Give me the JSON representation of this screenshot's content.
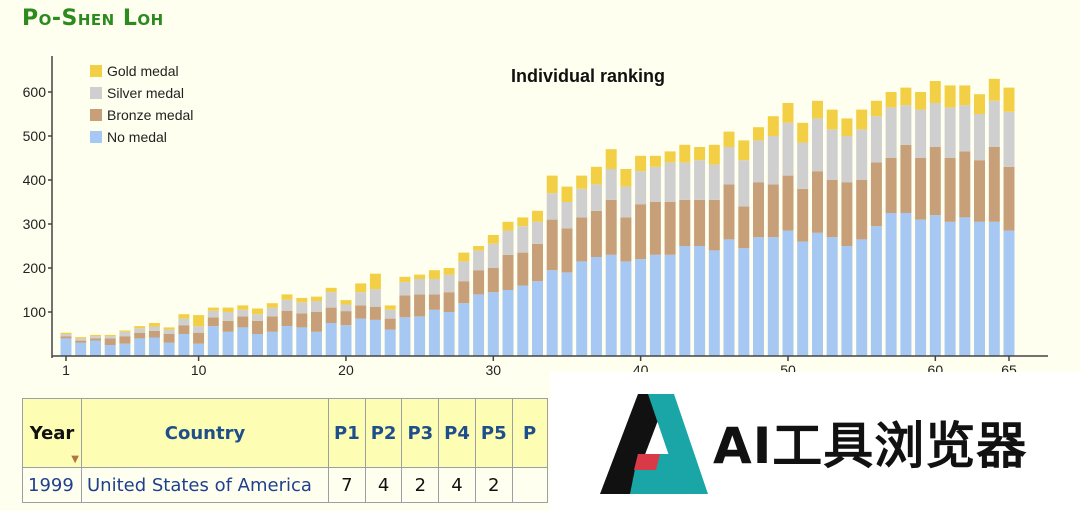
{
  "header": {
    "title": "Po-Shen Loh"
  },
  "chart_data": {
    "type": "bar",
    "title": "Individual ranking",
    "stacked": true,
    "ylim": [
      0,
      650
    ],
    "xlim": [
      1,
      65
    ],
    "y_ticks": [
      100,
      200,
      300,
      400,
      500,
      600
    ],
    "x_ticks": [
      1,
      10,
      20,
      30,
      40,
      50,
      60,
      65
    ],
    "legend_position": "top-left",
    "categories": [
      1,
      2,
      3,
      4,
      5,
      6,
      7,
      8,
      9,
      10,
      11,
      12,
      13,
      14,
      15,
      16,
      17,
      18,
      19,
      20,
      21,
      22,
      23,
      24,
      25,
      26,
      27,
      28,
      29,
      30,
      31,
      32,
      33,
      34,
      35,
      36,
      37,
      38,
      39,
      40,
      41,
      42,
      43,
      44,
      45,
      46,
      47,
      48,
      49,
      50,
      51,
      52,
      53,
      54,
      55,
      56,
      57,
      58,
      59,
      60,
      61,
      62,
      63,
      64,
      65
    ],
    "series": [
      {
        "name": "No medal",
        "color": "#a7c8f3",
        "values": [
          40,
          30,
          35,
          25,
          28,
          40,
          42,
          30,
          50,
          28,
          68,
          55,
          65,
          50,
          55,
          68,
          65,
          55,
          75,
          70,
          85,
          82,
          60,
          88,
          90,
          105,
          100,
          120,
          140,
          145,
          150,
          160,
          170,
          195,
          190,
          215,
          225,
          230,
          215,
          220,
          230,
          230,
          250,
          250,
          240,
          265,
          245,
          270,
          270,
          285,
          260,
          280,
          270,
          250,
          265,
          295,
          325,
          325,
          310,
          320,
          305,
          315,
          305,
          305,
          285
        ]
      },
      {
        "name": "Bronze medal",
        "color": "#c7a07a",
        "values": [
          5,
          5,
          5,
          15,
          17,
          13,
          15,
          20,
          20,
          25,
          20,
          25,
          25,
          30,
          35,
          35,
          32,
          45,
          35,
          32,
          30,
          30,
          25,
          50,
          50,
          35,
          45,
          50,
          55,
          55,
          80,
          75,
          85,
          115,
          100,
          100,
          105,
          125,
          100,
          125,
          120,
          120,
          105,
          105,
          115,
          125,
          95,
          125,
          120,
          125,
          120,
          140,
          130,
          145,
          135,
          145,
          125,
          155,
          140,
          155,
          145,
          150,
          140,
          170,
          145
        ]
      },
      {
        "name": "Silver medal",
        "color": "#cfcfcf",
        "values": [
          5,
          5,
          5,
          5,
          10,
          10,
          10,
          10,
          15,
          15,
          15,
          20,
          15,
          15,
          20,
          25,
          25,
          25,
          35,
          15,
          30,
          40,
          20,
          30,
          35,
          35,
          40,
          45,
          45,
          55,
          55,
          60,
          50,
          60,
          60,
          65,
          60,
          70,
          70,
          75,
          80,
          90,
          85,
          90,
          80,
          85,
          105,
          95,
          110,
          120,
          105,
          120,
          115,
          105,
          115,
          105,
          115,
          90,
          110,
          100,
          115,
          105,
          105,
          105,
          125
        ]
      },
      {
        "name": "Gold medal",
        "color": "#f3cf45",
        "values": [
          3,
          3,
          3,
          3,
          3,
          5,
          8,
          5,
          10,
          25,
          7,
          10,
          10,
          13,
          10,
          12,
          10,
          10,
          10,
          10,
          20,
          35,
          10,
          12,
          10,
          20,
          15,
          20,
          10,
          20,
          20,
          20,
          25,
          40,
          35,
          30,
          40,
          45,
          40,
          35,
          25,
          25,
          40,
          30,
          45,
          35,
          45,
          30,
          45,
          45,
          45,
          40,
          45,
          40,
          45,
          35,
          35,
          40,
          40,
          50,
          50,
          45,
          45,
          50,
          55
        ]
      }
    ]
  },
  "table": {
    "headers": {
      "year": "Year",
      "country": "Country",
      "p1": "P1",
      "p2": "P2",
      "p3": "P3",
      "p4": "P4",
      "p5": "P5",
      "p6": "P"
    },
    "row": {
      "year": "1999",
      "country": "United States of America",
      "p1": "7",
      "p2": "4",
      "p3": "2",
      "p4": "4",
      "p5": "2",
      "p6": ""
    }
  },
  "watermark": {
    "text": "AI工具浏览器",
    "colors": {
      "dark": "#111111",
      "teal": "#1aa6a6",
      "red": "#d83a47"
    }
  }
}
